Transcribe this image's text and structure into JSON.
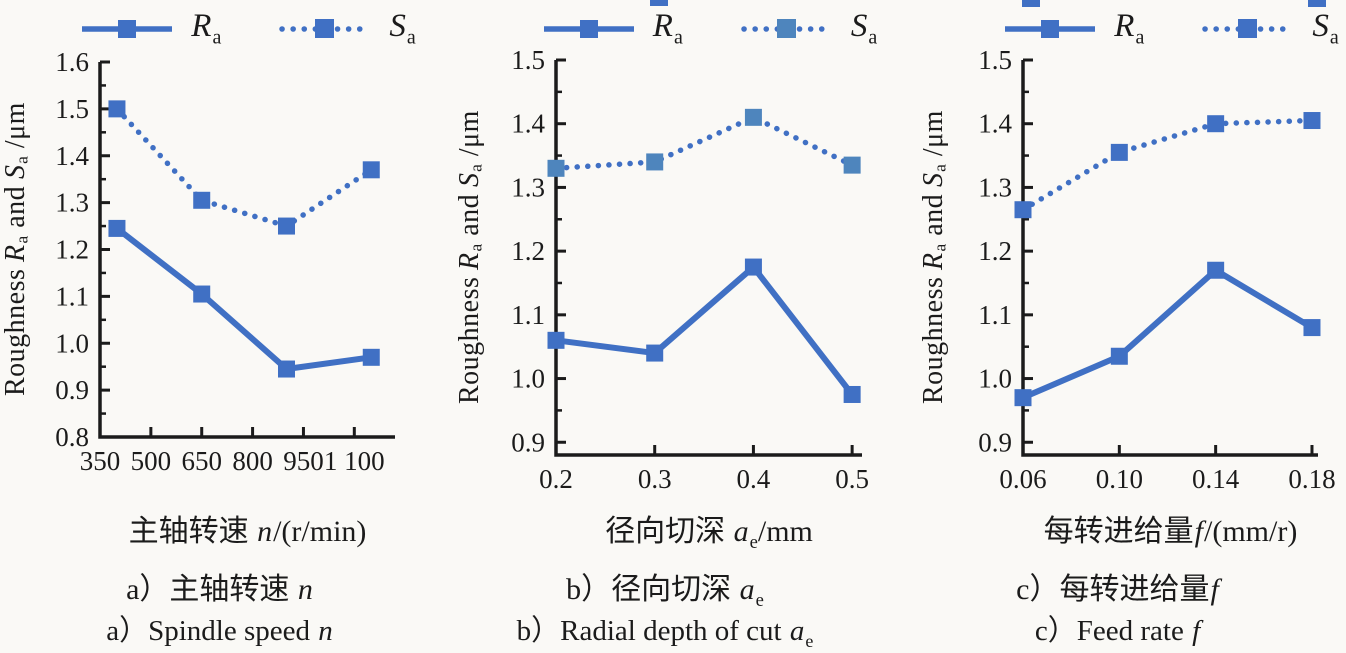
{
  "figure": {
    "ylabel_parts": [
      {
        "t": "Roughness "
      },
      {
        "t": "R",
        "i": 1
      },
      {
        "t": "a",
        "sub": 1
      },
      {
        "t": " and "
      },
      {
        "t": "S",
        "i": 1
      },
      {
        "t": "a",
        "sub": 1
      },
      {
        "t": " /μm"
      }
    ],
    "legend": {
      "ra_parts": [
        {
          "t": "R",
          "i": 1
        },
        {
          "t": "a",
          "sub": 1
        }
      ],
      "sa_parts": [
        {
          "t": "S",
          "i": 1
        },
        {
          "t": "a",
          "sub": 1
        }
      ]
    }
  },
  "colors": {
    "accent": "#4070c4",
    "sa_marker_alt": "#4e85bd",
    "axis": "#1b1b1b",
    "text": "#1b1b1b",
    "background": "#faf9f6"
  },
  "chart_data": [
    {
      "id": "spindle-speed",
      "panel": "a",
      "type": "line",
      "x": [
        400,
        650,
        900,
        1150
      ],
      "series": [
        {
          "name": "Ra",
          "line": "solid",
          "marker_color": "#4070c4",
          "values": [
            1.245,
            1.105,
            0.945,
            0.97
          ]
        },
        {
          "name": "Sa",
          "line": "dotted",
          "marker_color": "#4070c4",
          "values": [
            1.5,
            1.305,
            1.25,
            1.37
          ]
        }
      ],
      "xlim": [
        350,
        1220
      ],
      "ylim": [
        0.8,
        1.6
      ],
      "xticks": {
        "values": [
          350,
          500,
          650,
          800,
          950,
          1100
        ],
        "labels": [
          "350",
          "500",
          "650",
          "800",
          "950",
          "1 100"
        ]
      },
      "yticks": {
        "values": [
          0.8,
          0.9,
          1.0,
          1.1,
          1.2,
          1.3,
          1.4,
          1.5,
          1.6
        ],
        "labels": [
          "0.8",
          "0.9",
          "1.0",
          "1.1",
          "1.2",
          "1.3",
          "1.4",
          "1.5",
          "1.6"
        ]
      },
      "xlabel_parts": [
        {
          "t": "主轴转速 "
        },
        {
          "t": "n",
          "i": 1
        },
        {
          "t": "/(r/min)"
        }
      ],
      "caption_cn_parts": [
        {
          "t": "a）主轴转速 "
        },
        {
          "t": "n",
          "i": 1
        }
      ],
      "caption_en_parts": [
        {
          "t": "a）Spindle speed "
        },
        {
          "t": "n",
          "i": 1
        }
      ]
    },
    {
      "id": "radial-depth-of-cut",
      "panel": "b",
      "type": "line",
      "x": [
        0.2,
        0.3,
        0.4,
        0.5
      ],
      "series": [
        {
          "name": "Ra",
          "line": "solid",
          "marker_color": "#4070c4",
          "values": [
            1.06,
            1.04,
            1.175,
            0.975
          ]
        },
        {
          "name": "Sa",
          "line": "dotted",
          "marker_color": "#4e85bd",
          "values": [
            1.33,
            1.34,
            1.41,
            1.335
          ]
        }
      ],
      "xlim": [
        0.2,
        0.51
      ],
      "ylim": [
        0.88,
        1.5
      ],
      "xticks": {
        "values": [
          0.2,
          0.3,
          0.4,
          0.5
        ],
        "labels": [
          "0.2",
          "0.3",
          "0.4",
          "0.5"
        ]
      },
      "yticks": {
        "values": [
          0.9,
          1.0,
          1.1,
          1.2,
          1.3,
          1.4,
          1.5
        ],
        "labels": [
          "0.9",
          "1.0",
          "1.1",
          "1.2",
          "1.3",
          "1.4",
          "1.5"
        ]
      },
      "xlabel_parts": [
        {
          "t": "径向切深 "
        },
        {
          "t": "a",
          "i": 1
        },
        {
          "t": "e",
          "sub": 1
        },
        {
          "t": "/mm"
        }
      ],
      "caption_cn_parts": [
        {
          "t": "b）径向切深 "
        },
        {
          "t": "a",
          "i": 1
        },
        {
          "t": "e",
          "sub": 1
        }
      ],
      "caption_en_parts": [
        {
          "t": "b）Radial depth of cut "
        },
        {
          "t": "a",
          "i": 1
        },
        {
          "t": "e",
          "sub": 1
        }
      ]
    },
    {
      "id": "feed-rate",
      "panel": "c",
      "type": "line",
      "x": [
        0.06,
        0.1,
        0.14,
        0.18
      ],
      "series": [
        {
          "name": "Ra",
          "line": "solid",
          "marker_color": "#4070c4",
          "values": [
            0.97,
            1.035,
            1.17,
            1.08
          ]
        },
        {
          "name": "Sa",
          "line": "dotted",
          "marker_color": "#4070c4",
          "values": [
            1.265,
            1.355,
            1.4,
            1.405
          ]
        }
      ],
      "xlim": [
        0.06,
        0.1825
      ],
      "ylim": [
        0.88,
        1.5
      ],
      "xticks": {
        "values": [
          0.06,
          0.1,
          0.14,
          0.18
        ],
        "labels": [
          "0.06",
          "0.10",
          "0.14",
          "0.18"
        ]
      },
      "yticks": {
        "values": [
          0.9,
          1.0,
          1.1,
          1.2,
          1.3,
          1.4,
          1.5
        ],
        "labels": [
          "0.9",
          "1.0",
          "1.1",
          "1.2",
          "1.3",
          "1.4",
          "1.5"
        ]
      },
      "xlabel_parts": [
        {
          "t": "每转进给量"
        },
        {
          "t": "f",
          "i": 1
        },
        {
          "t": "/(mm/r)"
        }
      ],
      "caption_cn_parts": [
        {
          "t": "c）每转进给量"
        },
        {
          "t": "f",
          "i": 1
        }
      ],
      "caption_en_parts": [
        {
          "t": "c）Feed rate "
        },
        {
          "t": "f",
          "i": 1
        }
      ]
    }
  ]
}
